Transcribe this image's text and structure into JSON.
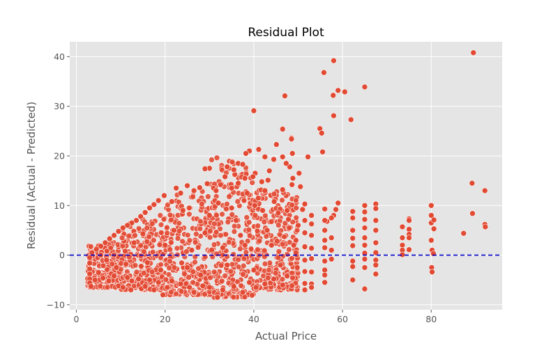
{
  "chart_data": {
    "type": "scatter",
    "title": "Residual Plot",
    "xlabel": "Actual Price",
    "ylabel": "Residual (Actual - Predicted)",
    "xlim": [
      -1.5,
      96
    ],
    "ylim": [
      -11,
      43
    ],
    "xticks": [
      0,
      20,
      40,
      60,
      80
    ],
    "yticks": [
      -10,
      0,
      10,
      20,
      30,
      40
    ],
    "grid": true,
    "background_color": "#e5e5e5",
    "grid_color": "#ffffff",
    "point_color": "#e24a33",
    "point_edge_color": "#ffffff",
    "reference_line": {
      "y": 0,
      "style": "dashed",
      "color": "#0000cc"
    },
    "bulk_summary": [
      {
        "x_range": [
          2.5,
          10
        ],
        "residual_range": [
          -6.5,
          5
        ]
      },
      {
        "x_range": [
          10,
          20
        ],
        "residual_range": [
          -7,
          10
        ]
      },
      {
        "x_range": [
          20,
          30
        ],
        "residual_range": [
          -8,
          14
        ]
      },
      {
        "x_range": [
          30,
          40
        ],
        "residual_range": [
          -8.5,
          20
        ]
      },
      {
        "x_range": [
          40,
          50
        ],
        "residual_range": [
          -7,
          16
        ]
      }
    ],
    "points": [
      [
        89.5,
        40.8
      ],
      [
        58,
        39.2
      ],
      [
        55.8,
        36.8
      ],
      [
        59,
        33.2
      ],
      [
        60.5,
        32.9
      ],
      [
        57.9,
        32.2
      ],
      [
        65,
        33.9
      ],
      [
        47,
        32.1
      ],
      [
        40,
        29.1
      ],
      [
        58,
        28.1
      ],
      [
        61.9,
        27.3
      ],
      [
        46.5,
        25.4
      ],
      [
        54.9,
        25.5
      ],
      [
        55.3,
        24.6
      ],
      [
        48.5,
        23.6
      ],
      [
        48.5,
        23.4
      ],
      [
        45.1,
        22.3
      ],
      [
        55.5,
        20.8
      ],
      [
        52.2,
        19.8
      ],
      [
        48.7,
        20.5
      ],
      [
        89.2,
        14.5
      ],
      [
        92.1,
        13
      ],
      [
        89.3,
        8.4
      ],
      [
        92.1,
        6.2
      ],
      [
        92.2,
        5.7
      ],
      [
        87.3,
        4.4
      ],
      [
        80,
        10
      ],
      [
        80,
        8
      ],
      [
        80,
        6.5
      ],
      [
        80.6,
        7.1
      ],
      [
        80.6,
        5.3
      ],
      [
        80,
        3
      ],
      [
        80.2,
        1
      ],
      [
        80.5,
        0.3
      ],
      [
        80.1,
        -2.5
      ],
      [
        80.2,
        -3.4
      ],
      [
        75,
        7.3
      ],
      [
        75,
        7
      ],
      [
        75,
        5.2
      ],
      [
        75,
        4.2
      ],
      [
        75,
        3.5
      ],
      [
        75,
        1.1
      ],
      [
        73.5,
        5.7
      ],
      [
        73.5,
        3.5
      ],
      [
        73.5,
        2
      ],
      [
        73.5,
        1
      ],
      [
        73.5,
        0.1
      ],
      [
        67.5,
        10.3
      ],
      [
        67.5,
        9.4
      ],
      [
        67.5,
        7
      ],
      [
        67.5,
        5
      ],
      [
        67.5,
        2.5
      ],
      [
        67.5,
        0.5
      ],
      [
        67.5,
        -1
      ],
      [
        67.5,
        -2
      ],
      [
        67.5,
        -3.8
      ],
      [
        65,
        10
      ],
      [
        65,
        8.7
      ],
      [
        65,
        7.2
      ],
      [
        65,
        5.5
      ],
      [
        65,
        3.5
      ],
      [
        65,
        2
      ],
      [
        65,
        0.4
      ],
      [
        65,
        -0.8
      ],
      [
        65,
        -2.5
      ],
      [
        65,
        -6.8
      ],
      [
        62.3,
        8.8
      ],
      [
        62.3,
        7.5
      ],
      [
        62.3,
        5
      ],
      [
        62.3,
        3.4
      ],
      [
        62.3,
        1.9
      ],
      [
        62.3,
        -1.2
      ],
      [
        62.3,
        -2.3
      ],
      [
        62.3,
        -5
      ],
      [
        59,
        10.5
      ],
      [
        58.5,
        9.2
      ],
      [
        58,
        8
      ],
      [
        57.5,
        7.5
      ],
      [
        56.5,
        6.8
      ],
      [
        57.5,
        3.5
      ],
      [
        57.5,
        1
      ],
      [
        57.5,
        -0.8
      ],
      [
        56,
        9.3
      ],
      [
        56,
        7
      ],
      [
        56,
        5
      ],
      [
        56,
        3
      ],
      [
        56,
        1.5
      ],
      [
        56,
        -1.2
      ],
      [
        56,
        -3
      ],
      [
        56,
        -4
      ],
      [
        56,
        -5.5
      ],
      [
        53,
        8
      ],
      [
        53,
        6.3
      ],
      [
        53,
        4
      ],
      [
        53,
        1.4
      ],
      [
        53,
        -0.7
      ],
      [
        53,
        -3.4
      ],
      [
        53,
        -5.8
      ],
      [
        53,
        -6.5
      ],
      [
        51.5,
        10.3
      ],
      [
        51.5,
        7
      ],
      [
        51.5,
        4.5
      ],
      [
        51.5,
        1.7
      ],
      [
        51.5,
        -1
      ],
      [
        51.5,
        -3.3
      ],
      [
        51.5,
        -5.7
      ],
      [
        51.5,
        -7
      ],
      [
        50.2,
        16.5
      ],
      [
        50.5,
        13.8
      ],
      [
        51,
        9.2
      ],
      [
        50,
        6
      ],
      [
        49.5,
        3
      ],
      [
        49.5,
        0.5
      ],
      [
        49.8,
        -2.5
      ],
      [
        48.1,
        17.8
      ],
      [
        48.8,
        15.5
      ],
      [
        48.6,
        14.2
      ],
      [
        47.3,
        18.5
      ],
      [
        46.5,
        19.8
      ],
      [
        46.5,
        13.2
      ],
      [
        44.5,
        19.3
      ],
      [
        42.5,
        19.8
      ],
      [
        43.5,
        17
      ],
      [
        41.1,
        21.3
      ],
      [
        39,
        21
      ],
      [
        38.2,
        20.5
      ],
      [
        36.5,
        18.5
      ],
      [
        37.5,
        18.3
      ],
      [
        35.5,
        17.2
      ],
      [
        34,
        17.8
      ],
      [
        30,
        17.5
      ],
      [
        29,
        17.4
      ],
      [
        41.8,
        14.8
      ],
      [
        43.2,
        15.1
      ],
      [
        40.3,
        16.5
      ],
      [
        39.8,
        15.8
      ],
      [
        38,
        15.5
      ],
      [
        42.5,
        13
      ],
      [
        44.6,
        10.8
      ],
      [
        45.5,
        8.5
      ],
      [
        47.5,
        9
      ],
      [
        47.8,
        7.2
      ],
      [
        41,
        11.5
      ],
      [
        40.2,
        10
      ],
      [
        38.5,
        12.5
      ],
      [
        37.8,
        11
      ],
      [
        36.5,
        14.5
      ],
      [
        35,
        13.5
      ],
      [
        33.5,
        15.8
      ],
      [
        32.5,
        14.2
      ],
      [
        31.5,
        13
      ],
      [
        29.5,
        14.4
      ],
      [
        27.8,
        13.6
      ],
      [
        26.5,
        13
      ],
      [
        25,
        14
      ],
      [
        23.5,
        12.5
      ],
      [
        22.5,
        13.5
      ],
      [
        21.5,
        10.8
      ],
      [
        19.8,
        12
      ],
      [
        18.5,
        11
      ],
      [
        17.5,
        10.2
      ],
      [
        16.5,
        9.5
      ],
      [
        15.5,
        8.6
      ],
      [
        14.5,
        7.8
      ],
      [
        13.5,
        7
      ],
      [
        12.5,
        6.5
      ],
      [
        11.5,
        6
      ],
      [
        10.5,
        5.5
      ],
      [
        9.5,
        4.8
      ],
      [
        8.5,
        4
      ],
      [
        7.5,
        3.3
      ],
      [
        6.5,
        2.5
      ],
      [
        5.5,
        1.8
      ],
      [
        4.5,
        1.2
      ],
      [
        3.5,
        0.5
      ],
      [
        3,
        -0.5
      ],
      [
        3,
        -1.6
      ],
      [
        3,
        -2.8
      ],
      [
        3,
        -3.8
      ],
      [
        3,
        -4.8
      ],
      [
        3,
        -5.6
      ],
      [
        3.3,
        -6.3
      ],
      [
        4.2,
        -5
      ],
      [
        5,
        -3.5
      ],
      [
        6,
        -4.6
      ],
      [
        7.3,
        -5.2
      ],
      [
        8.5,
        -4.2
      ],
      [
        9.5,
        -6.2
      ],
      [
        10.5,
        -6.5
      ],
      [
        11.5,
        -4.5
      ],
      [
        12.5,
        -5.2
      ],
      [
        14,
        -4.8
      ],
      [
        15.5,
        -6.3
      ],
      [
        16.5,
        -5
      ],
      [
        17.5,
        -7
      ],
      [
        18.5,
        -5.5
      ],
      [
        19.5,
        -8
      ],
      [
        20.5,
        -6.5
      ],
      [
        21.5,
        -5.2
      ],
      [
        23.5,
        -5.8
      ],
      [
        25.5,
        -6.5
      ],
      [
        26.5,
        -7.5
      ],
      [
        28.5,
        -6.2
      ],
      [
        30,
        -6.5
      ],
      [
        31.8,
        -8.5
      ],
      [
        33,
        -7
      ],
      [
        35.5,
        -6.3
      ],
      [
        37.5,
        -7.5
      ],
      [
        40.5,
        -6.5
      ],
      [
        42.5,
        -5.8
      ],
      [
        44.5,
        -4.8
      ],
      [
        46.5,
        -6
      ],
      [
        47.5,
        -4.2
      ],
      [
        5.5,
        0
      ],
      [
        9,
        -2.5
      ],
      [
        13,
        2.5
      ],
      [
        16,
        -1.5
      ],
      [
        22,
        5
      ],
      [
        26,
        1
      ],
      [
        30,
        8
      ],
      [
        34,
        -2
      ],
      [
        37,
        4
      ],
      [
        40,
        -3
      ],
      [
        44,
        2
      ],
      [
        48,
        5.5
      ],
      [
        11,
        0.8
      ],
      [
        15,
        4.3
      ],
      [
        19,
        -3
      ],
      [
        24,
        9
      ],
      [
        28,
        -4
      ],
      [
        32,
        10.5
      ],
      [
        36,
        7
      ],
      [
        39,
        -5.5
      ],
      [
        42,
        9
      ],
      [
        46,
        -2
      ],
      [
        6.8,
        -1
      ],
      [
        20,
        2
      ],
      [
        25,
        -2.5
      ],
      [
        29,
        4.5
      ],
      [
        33,
        1.5
      ],
      [
        35,
        9.5
      ],
      [
        38,
        2
      ],
      [
        43,
        5
      ],
      [
        45.5,
        -0.5
      ],
      [
        49,
        2
      ]
    ]
  }
}
